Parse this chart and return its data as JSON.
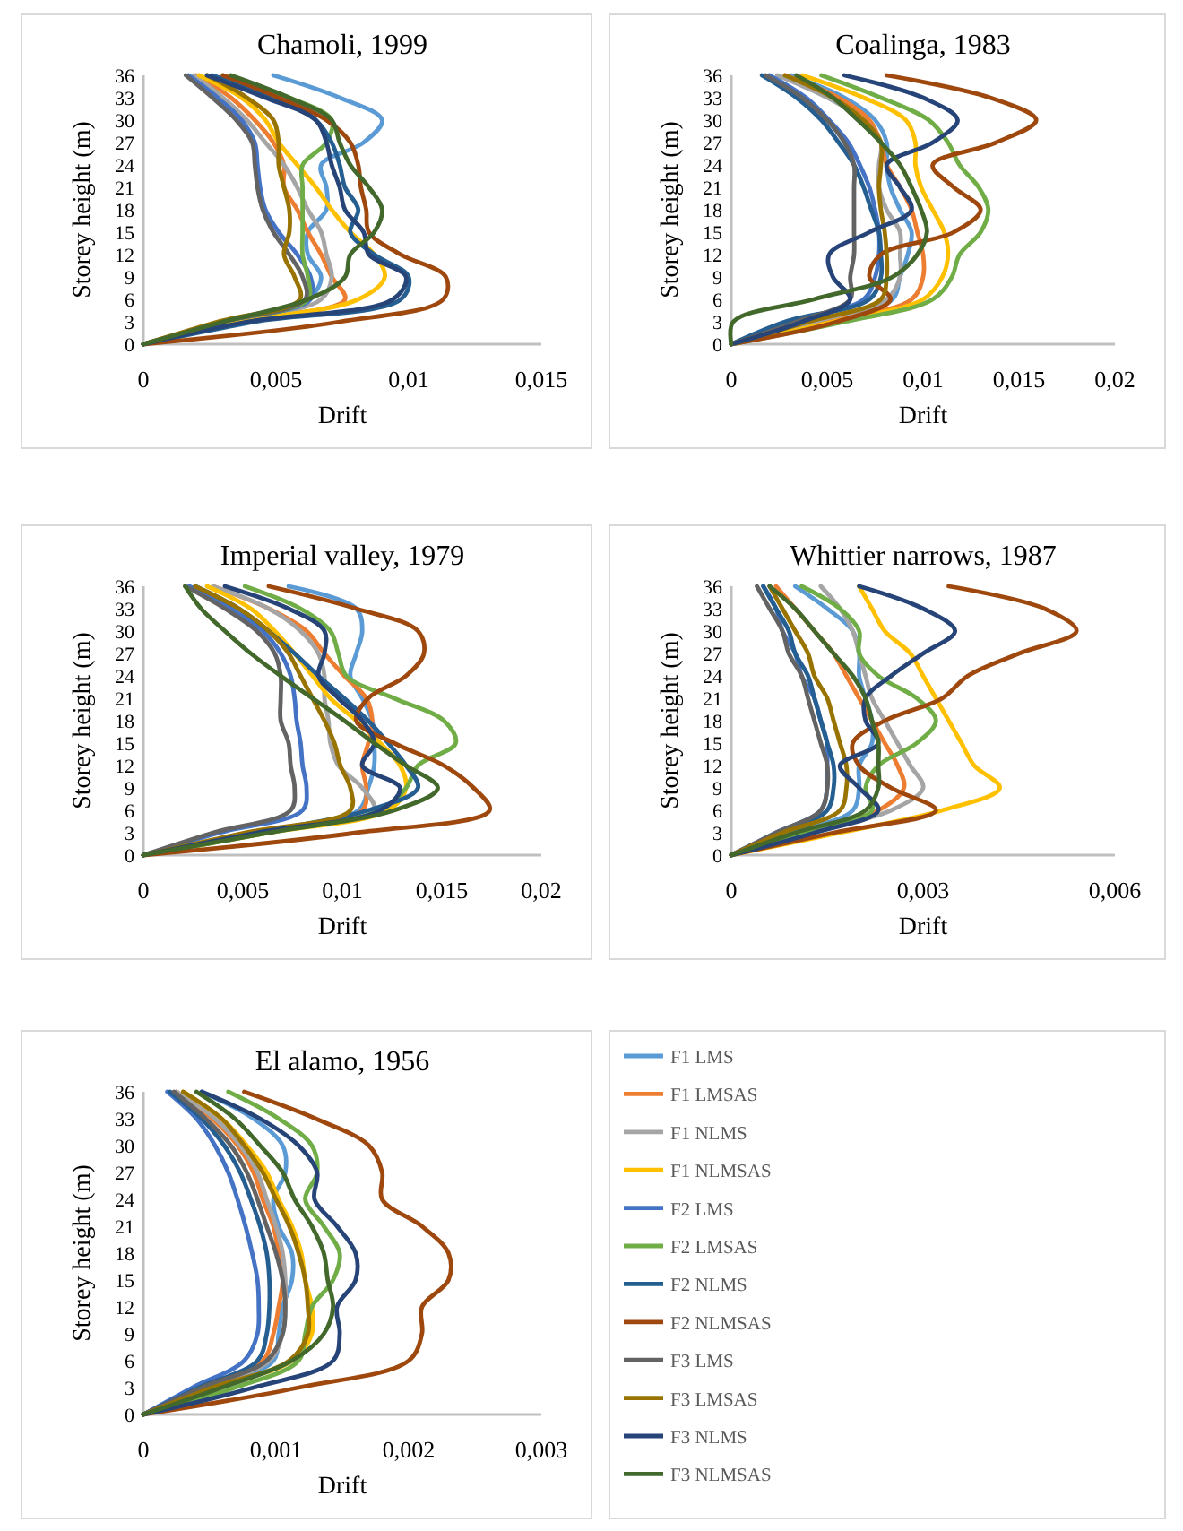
{
  "chart_data": [
    {
      "type": "line",
      "title": "Chamoli, 1999",
      "xlabel": "Drift",
      "ylabel": "Storey height (m)",
      "xlim": [
        0,
        0.015
      ],
      "xticks": [
        {
          "value": 0,
          "label": "0"
        },
        {
          "value": 0.005,
          "label": "0,005"
        },
        {
          "value": 0.01,
          "label": "0,01"
        },
        {
          "value": 0.015,
          "label": "0,015"
        }
      ],
      "ylim": [
        0,
        36
      ],
      "yticks": [
        0,
        3,
        6,
        9,
        12,
        15,
        18,
        21,
        24,
        27,
        30,
        33,
        36
      ],
      "grid": false,
      "legend": false,
      "series": [
        {
          "color": "#5b9bd5",
          "x": [
            0,
            0.003,
            0.0062,
            0.0067,
            0.0062,
            0.0062,
            0.0069,
            0.0069,
            0.0067,
            0.0083,
            0.009,
            0.0074,
            0.0049
          ],
          "values": [
            0,
            3,
            6,
            9,
            12,
            15,
            18,
            21,
            24,
            27,
            30,
            33,
            36
          ]
        },
        {
          "color": "#ed7d31",
          "x": [
            0,
            0.0035,
            0.0076,
            0.0071,
            0.0067,
            0.0062,
            0.0058,
            0.0053,
            0.0053,
            0.0049,
            0.0042,
            0.0033,
            0.002
          ],
          "values": [
            0,
            3,
            6,
            9,
            12,
            15,
            18,
            21,
            24,
            27,
            30,
            33,
            36
          ]
        },
        {
          "color": "#a5a5a5",
          "x": [
            0,
            0.0033,
            0.0067,
            0.0071,
            0.0069,
            0.0067,
            0.0062,
            0.0058,
            0.0053,
            0.0046,
            0.0039,
            0.003,
            0.0019
          ],
          "values": [
            0,
            3,
            6,
            9,
            12,
            15,
            18,
            21,
            24,
            27,
            30,
            33,
            36
          ]
        },
        {
          "color": "#ffc000",
          "x": [
            0,
            0.0037,
            0.0081,
            0.0091,
            0.0087,
            0.0078,
            0.0071,
            0.0065,
            0.0058,
            0.0051,
            0.0046,
            0.0037,
            0.0021
          ],
          "values": [
            0,
            3,
            6,
            9,
            12,
            15,
            18,
            21,
            24,
            27,
            30,
            33,
            36
          ]
        },
        {
          "color": "#4472c4",
          "x": [
            0,
            0.003,
            0.0063,
            0.0063,
            0.0058,
            0.0051,
            0.0046,
            0.0044,
            0.0043,
            0.0042,
            0.0037,
            0.0028,
            0.0017
          ],
          "values": [
            0,
            3,
            6,
            9,
            12,
            15,
            18,
            21,
            24,
            27,
            30,
            33,
            36
          ]
        },
        {
          "color": "#70ad47",
          "x": [
            0,
            0.003,
            0.0062,
            0.0062,
            0.006,
            0.006,
            0.006,
            0.006,
            0.006,
            0.0069,
            0.0071,
            0.0055,
            0.003
          ],
          "values": [
            0,
            3,
            6,
            9,
            12,
            15,
            18,
            21,
            24,
            27,
            30,
            33,
            36
          ]
        },
        {
          "color": "#255e91",
          "x": [
            0,
            0.0042,
            0.0097,
            0.01,
            0.0087,
            0.0078,
            0.0081,
            0.0076,
            0.0074,
            0.0071,
            0.0065,
            0.0049,
            0.0026
          ],
          "values": [
            0,
            3,
            6,
            9,
            12,
            15,
            18,
            21,
            24,
            27,
            30,
            33,
            36
          ]
        },
        {
          "color": "#9e480e",
          "x": [
            0,
            0.0074,
            0.0113,
            0.0114,
            0.0097,
            0.0085,
            0.0084,
            0.0082,
            0.0081,
            0.0078,
            0.0069,
            0.0051,
            0.003
          ],
          "values": [
            0,
            3,
            6,
            9,
            12,
            15,
            18,
            21,
            24,
            27,
            30,
            33,
            36
          ]
        },
        {
          "color": "#636363",
          "x": [
            0,
            0.003,
            0.0061,
            0.006,
            0.0055,
            0.0049,
            0.0045,
            0.0043,
            0.0042,
            0.0041,
            0.0035,
            0.0026,
            0.0016
          ],
          "values": [
            0,
            3,
            6,
            9,
            12,
            15,
            18,
            21,
            24,
            27,
            30,
            33,
            36
          ]
        },
        {
          "color": "#997300",
          "x": [
            0,
            0.0028,
            0.0059,
            0.0057,
            0.0053,
            0.0055,
            0.0055,
            0.0053,
            0.0051,
            0.0051,
            0.0049,
            0.0039,
            0.0024
          ],
          "values": [
            0,
            3,
            6,
            9,
            12,
            15,
            18,
            21,
            24,
            27,
            30,
            33,
            36
          ]
        },
        {
          "color": "#264478",
          "x": [
            0,
            0.0039,
            0.0094,
            0.0099,
            0.0085,
            0.0083,
            0.0076,
            0.0074,
            0.0071,
            0.0069,
            0.0065,
            0.0046,
            0.0024
          ],
          "values": [
            0,
            3,
            6,
            9,
            12,
            15,
            18,
            21,
            24,
            27,
            30,
            33,
            36
          ]
        },
        {
          "color": "#43682b",
          "x": [
            0,
            0.003,
            0.0062,
            0.0076,
            0.0078,
            0.0087,
            0.009,
            0.0085,
            0.0078,
            0.0074,
            0.0071,
            0.0055,
            0.0033
          ],
          "values": [
            0,
            3,
            6,
            9,
            12,
            15,
            18,
            21,
            24,
            27,
            30,
            33,
            36
          ]
        }
      ]
    },
    {
      "type": "line",
      "title": "Coalinga, 1983",
      "xlabel": "Drift",
      "ylabel": "Storey height (m)",
      "xlim": [
        0,
        0.02
      ],
      "xticks": [
        {
          "value": 0,
          "label": "0"
        },
        {
          "value": 0.005,
          "label": "0,005"
        },
        {
          "value": 0.01,
          "label": "0,01"
        },
        {
          "value": 0.015,
          "label": "0,015"
        },
        {
          "value": 0.02,
          "label": "0,02"
        }
      ],
      "ylim": [
        0,
        36
      ],
      "yticks": [
        0,
        3,
        6,
        9,
        12,
        15,
        18,
        21,
        24,
        27,
        30,
        33,
        36
      ],
      "grid": false,
      "legend": false,
      "series": [
        {
          "color": "#5b9bd5",
          "x": [
            0,
            0.0047,
            0.0084,
            0.0088,
            0.0092,
            0.0094,
            0.0088,
            0.0083,
            0.0081,
            0.0081,
            0.0075,
            0.0059,
            0.0031
          ],
          "values": [
            0,
            3,
            6,
            9,
            12,
            15,
            18,
            21,
            24,
            27,
            30,
            33,
            36
          ]
        },
        {
          "color": "#ed7d31",
          "x": [
            0,
            0.005,
            0.0094,
            0.01,
            0.01,
            0.0097,
            0.0094,
            0.0088,
            0.0081,
            0.0078,
            0.0072,
            0.0056,
            0.0028
          ],
          "values": [
            0,
            3,
            6,
            9,
            12,
            15,
            18,
            21,
            24,
            27,
            30,
            33,
            36
          ]
        },
        {
          "color": "#a5a5a5",
          "x": [
            0,
            0.0043,
            0.0081,
            0.0088,
            0.0088,
            0.0088,
            0.0081,
            0.0077,
            0.0077,
            0.0078,
            0.0069,
            0.005,
            0.0024
          ],
          "values": [
            0,
            3,
            6,
            9,
            12,
            15,
            18,
            21,
            24,
            27,
            30,
            33,
            36
          ]
        },
        {
          "color": "#ffc000",
          "x": [
            0,
            0.0053,
            0.01,
            0.011,
            0.0113,
            0.0111,
            0.0105,
            0.0099,
            0.0096,
            0.0096,
            0.0091,
            0.0069,
            0.0037
          ],
          "values": [
            0,
            3,
            6,
            9,
            12,
            15,
            18,
            21,
            24,
            27,
            30,
            33,
            36
          ]
        },
        {
          "color": "#4472c4",
          "x": [
            0,
            0.0031,
            0.0069,
            0.0075,
            0.0077,
            0.0077,
            0.0075,
            0.0072,
            0.0067,
            0.0061,
            0.0051,
            0.0039,
            0.002
          ],
          "values": [
            0,
            3,
            6,
            9,
            12,
            15,
            18,
            21,
            24,
            27,
            30,
            33,
            36
          ]
        },
        {
          "color": "#70ad47",
          "x": [
            0,
            0.0059,
            0.0105,
            0.0115,
            0.0119,
            0.013,
            0.0134,
            0.0129,
            0.0119,
            0.0113,
            0.0103,
            0.0078,
            0.0047
          ],
          "values": [
            0,
            3,
            6,
            9,
            12,
            15,
            18,
            21,
            24,
            27,
            30,
            33,
            36
          ]
        },
        {
          "color": "#255e91",
          "x": [
            0,
            0.0028,
            0.0072,
            0.0078,
            0.0078,
            0.0077,
            0.0073,
            0.0069,
            0.0064,
            0.0056,
            0.0047,
            0.0034,
            0.0016
          ],
          "values": [
            0,
            3,
            6,
            9,
            12,
            15,
            18,
            21,
            24,
            27,
            30,
            33,
            36
          ]
        },
        {
          "color": "#9e480e",
          "x": [
            0,
            0.0055,
            0.0083,
            0.0072,
            0.0078,
            0.0116,
            0.013,
            0.0116,
            0.0105,
            0.0138,
            0.0159,
            0.0135,
            0.0081
          ],
          "values": [
            0,
            3,
            6,
            9,
            12,
            15,
            18,
            21,
            24,
            27,
            30,
            33,
            36
          ]
        },
        {
          "color": "#636363",
          "x": [
            0,
            0.0034,
            0.0062,
            0.0062,
            0.0064,
            0.0064,
            0.0064,
            0.0064,
            0.0064,
            0.0059,
            0.005,
            0.0037,
            0.0018
          ],
          "values": [
            0,
            3,
            6,
            9,
            12,
            15,
            18,
            21,
            24,
            27,
            30,
            33,
            36
          ]
        },
        {
          "color": "#997300",
          "x": [
            0,
            0.004,
            0.0078,
            0.0081,
            0.0081,
            0.008,
            0.0078,
            0.0077,
            0.0078,
            0.0078,
            0.0069,
            0.0053,
            0.0028
          ],
          "values": [
            0,
            3,
            6,
            9,
            12,
            15,
            18,
            21,
            24,
            27,
            30,
            33,
            36
          ]
        },
        {
          "color": "#264478",
          "x": [
            0,
            0.0037,
            0.0062,
            0.0053,
            0.0051,
            0.0072,
            0.0094,
            0.0088,
            0.0081,
            0.0105,
            0.0118,
            0.01,
            0.0059
          ],
          "values": [
            0,
            3,
            6,
            9,
            12,
            15,
            18,
            21,
            24,
            27,
            30,
            33,
            36
          ]
        },
        {
          "color": "#43682b",
          "x": [
            0,
            0.0001,
            0.0043,
            0.0084,
            0.0097,
            0.0102,
            0.0099,
            0.0094,
            0.0088,
            0.0078,
            0.0066,
            0.0053,
            0.0034
          ],
          "values": [
            0,
            3,
            6,
            9,
            12,
            15,
            18,
            21,
            24,
            27,
            30,
            33,
            36
          ]
        }
      ]
    },
    {
      "type": "line",
      "title": "Imperial valley, 1979",
      "xlabel": "Drift",
      "ylabel": "Storey height (m)",
      "xlim": [
        0,
        0.02
      ],
      "xticks": [
        {
          "value": 0,
          "label": "0"
        },
        {
          "value": 0.005,
          "label": "0,005"
        },
        {
          "value": 0.01,
          "label": "0,01"
        },
        {
          "value": 0.015,
          "label": "0,015"
        },
        {
          "value": 0.02,
          "label": "0,02"
        }
      ],
      "ylim": [
        0,
        36
      ],
      "yticks": [
        0,
        3,
        6,
        9,
        12,
        15,
        18,
        21,
        24,
        27,
        30,
        33,
        36
      ],
      "grid": false,
      "legend": false,
      "series": [
        {
          "color": "#5b9bd5",
          "x": [
            0,
            0.0057,
            0.0108,
            0.0113,
            0.0116,
            0.0116,
            0.0115,
            0.011,
            0.0104,
            0.0107,
            0.011,
            0.0107,
            0.0073
          ],
          "values": [
            0,
            3,
            6,
            9,
            12,
            15,
            18,
            21,
            24,
            27,
            30,
            33,
            36
          ]
        },
        {
          "color": "#ed7d31",
          "x": [
            0,
            0.0057,
            0.011,
            0.0112,
            0.011,
            0.0113,
            0.0115,
            0.0112,
            0.0101,
            0.0091,
            0.0082,
            0.0063,
            0.0035
          ],
          "values": [
            0,
            3,
            6,
            9,
            12,
            15,
            18,
            21,
            24,
            27,
            30,
            33,
            36
          ]
        },
        {
          "color": "#a5a5a5",
          "x": [
            0,
            0.0057,
            0.0116,
            0.011,
            0.0098,
            0.0094,
            0.0093,
            0.0091,
            0.0091,
            0.0088,
            0.0079,
            0.0063,
            0.0035
          ],
          "values": [
            0,
            3,
            6,
            9,
            12,
            15,
            18,
            21,
            24,
            27,
            30,
            33,
            36
          ]
        },
        {
          "color": "#ffc000",
          "x": [
            0,
            0.0063,
            0.0123,
            0.0132,
            0.0129,
            0.0119,
            0.0107,
            0.0094,
            0.0085,
            0.0076,
            0.0066,
            0.0054,
            0.0032
          ],
          "values": [
            0,
            3,
            6,
            9,
            12,
            15,
            18,
            21,
            24,
            27,
            30,
            33,
            36
          ]
        },
        {
          "color": "#4472c4",
          "x": [
            0,
            0.0038,
            0.008,
            0.0082,
            0.008,
            0.0079,
            0.0077,
            0.0076,
            0.0074,
            0.0069,
            0.006,
            0.0044,
            0.0023
          ],
          "values": [
            0,
            3,
            6,
            9,
            12,
            15,
            18,
            21,
            24,
            27,
            30,
            33,
            36
          ]
        },
        {
          "color": "#70ad47",
          "x": [
            0,
            0.0063,
            0.0119,
            0.0132,
            0.0138,
            0.0157,
            0.0151,
            0.0126,
            0.0102,
            0.0098,
            0.0094,
            0.0079,
            0.0051
          ],
          "values": [
            0,
            3,
            6,
            9,
            12,
            15,
            18,
            21,
            24,
            27,
            30,
            33,
            36
          ]
        },
        {
          "color": "#255e91",
          "x": [
            0,
            0.0057,
            0.0113,
            0.0138,
            0.0132,
            0.0123,
            0.0113,
            0.0101,
            0.0088,
            0.0076,
            0.0063,
            0.0048,
            0.0026
          ],
          "values": [
            0,
            3,
            6,
            9,
            12,
            15,
            18,
            21,
            24,
            27,
            30,
            33,
            36
          ]
        },
        {
          "color": "#9e480e",
          "x": [
            0,
            0.0107,
            0.0174,
            0.0166,
            0.0151,
            0.0126,
            0.0107,
            0.0113,
            0.0132,
            0.0141,
            0.0138,
            0.0107,
            0.0063
          ],
          "values": [
            0,
            3,
            6,
            9,
            12,
            15,
            18,
            21,
            24,
            27,
            30,
            33,
            36
          ]
        },
        {
          "color": "#636363",
          "x": [
            0,
            0.0035,
            0.0074,
            0.0076,
            0.0074,
            0.0073,
            0.0069,
            0.0069,
            0.0069,
            0.0066,
            0.0057,
            0.0041,
            0.0021
          ],
          "values": [
            0,
            3,
            6,
            9,
            12,
            15,
            18,
            21,
            24,
            27,
            30,
            33,
            36
          ]
        },
        {
          "color": "#997300",
          "x": [
            0,
            0.0051,
            0.0104,
            0.0104,
            0.0099,
            0.0096,
            0.0091,
            0.0085,
            0.0079,
            0.0073,
            0.0063,
            0.0048,
            0.0026
          ],
          "values": [
            0,
            3,
            6,
            9,
            12,
            15,
            18,
            21,
            24,
            27,
            30,
            33,
            36
          ]
        },
        {
          "color": "#264478",
          "x": [
            0,
            0.0057,
            0.0119,
            0.0129,
            0.011,
            0.0116,
            0.011,
            0.0098,
            0.0088,
            0.0091,
            0.0091,
            0.0073,
            0.0041
          ],
          "values": [
            0,
            3,
            6,
            9,
            12,
            15,
            18,
            21,
            24,
            27,
            30,
            33,
            36
          ]
        },
        {
          "color": "#43682b",
          "x": [
            0,
            0.0063,
            0.0126,
            0.0148,
            0.0132,
            0.0116,
            0.0101,
            0.0085,
            0.0069,
            0.0054,
            0.0041,
            0.0029,
            0.0021
          ],
          "values": [
            0,
            3,
            6,
            9,
            12,
            15,
            18,
            21,
            24,
            27,
            30,
            33,
            36
          ]
        }
      ]
    },
    {
      "type": "line",
      "title": "Whittier narrows, 1987",
      "xlabel": "Drift",
      "ylabel": "Storey height (m)",
      "xlim": [
        0,
        0.006
      ],
      "xticks": [
        {
          "value": 0,
          "label": "0"
        },
        {
          "value": 0.003,
          "label": "0,003"
        },
        {
          "value": 0.006,
          "label": "0,006"
        }
      ],
      "ylim": [
        0,
        36
      ],
      "yticks": [
        0,
        3,
        6,
        9,
        12,
        15,
        18,
        21,
        24,
        27,
        30,
        33,
        36
      ],
      "grid": false,
      "legend": false,
      "series": [
        {
          "color": "#5b9bd5",
          "x": [
            0,
            0.001,
            0.0019,
            0.002,
            0.002,
            0.0022,
            0.0022,
            0.0021,
            0.002,
            0.002,
            0.0019,
            0.0015,
            0.001
          ],
          "values": [
            0,
            3,
            6,
            9,
            12,
            15,
            18,
            21,
            24,
            27,
            30,
            33,
            36
          ]
        },
        {
          "color": "#ed7d31",
          "x": [
            0,
            0.0011,
            0.0023,
            0.0027,
            0.0026,
            0.0024,
            0.0022,
            0.002,
            0.0018,
            0.0016,
            0.0013,
            0.001,
            0.0007
          ],
          "values": [
            0,
            3,
            6,
            9,
            12,
            15,
            18,
            21,
            24,
            27,
            30,
            33,
            36
          ]
        },
        {
          "color": "#a5a5a5",
          "x": [
            0,
            0.0012,
            0.0025,
            0.003,
            0.0028,
            0.0026,
            0.0024,
            0.0022,
            0.0021,
            0.002,
            0.0019,
            0.0017,
            0.0014
          ],
          "values": [
            0,
            3,
            6,
            9,
            12,
            15,
            18,
            21,
            24,
            27,
            30,
            33,
            36
          ]
        },
        {
          "color": "#ffc000",
          "x": [
            0,
            0.0017,
            0.0033,
            0.0042,
            0.0038,
            0.0036,
            0.0034,
            0.0032,
            0.003,
            0.0028,
            0.0024,
            0.0022,
            0.002
          ],
          "values": [
            0,
            3,
            6,
            9,
            12,
            15,
            18,
            21,
            24,
            27,
            30,
            33,
            36
          ]
        },
        {
          "color": "#4472c4",
          "x": [
            0,
            0.0007,
            0.0014,
            0.0015,
            0.0015,
            0.0015,
            0.0014,
            0.0013,
            0.0011,
            0.001,
            0.0008,
            0.0007,
            0.0005
          ],
          "values": [
            0,
            3,
            6,
            9,
            12,
            15,
            18,
            21,
            24,
            27,
            30,
            33,
            36
          ]
        },
        {
          "color": "#70ad47",
          "x": [
            0,
            0.0011,
            0.0022,
            0.0021,
            0.0023,
            0.0029,
            0.0032,
            0.0029,
            0.0023,
            0.002,
            0.002,
            0.0017,
            0.0011
          ],
          "values": [
            0,
            3,
            6,
            9,
            12,
            15,
            18,
            21,
            24,
            27,
            30,
            33,
            36
          ]
        },
        {
          "color": "#255e91",
          "x": [
            0,
            0.0008,
            0.0015,
            0.0016,
            0.0016,
            0.0015,
            0.0014,
            0.0013,
            0.0012,
            0.001,
            0.0009,
            0.0007,
            0.0005
          ],
          "values": [
            0,
            3,
            6,
            9,
            12,
            15,
            18,
            21,
            24,
            27,
            30,
            33,
            36
          ]
        },
        {
          "color": "#9e480e",
          "x": [
            0,
            0.0016,
            0.0032,
            0.0025,
            0.002,
            0.0019,
            0.0024,
            0.0033,
            0.0037,
            0.0045,
            0.0054,
            0.0049,
            0.0034
          ],
          "values": [
            0,
            3,
            6,
            9,
            12,
            15,
            18,
            21,
            24,
            27,
            30,
            33,
            36
          ]
        },
        {
          "color": "#636363",
          "x": [
            0,
            0.0007,
            0.0014,
            0.0015,
            0.0015,
            0.0014,
            0.0013,
            0.0012,
            0.0011,
            0.0009,
            0.0008,
            0.0006,
            0.0004
          ],
          "values": [
            0,
            3,
            6,
            9,
            12,
            15,
            18,
            21,
            24,
            27,
            30,
            33,
            36
          ]
        },
        {
          "color": "#997300",
          "x": [
            0,
            0.0008,
            0.0017,
            0.0018,
            0.0018,
            0.0017,
            0.0016,
            0.0015,
            0.0013,
            0.0012,
            0.001,
            0.0008,
            0.0006
          ],
          "values": [
            0,
            3,
            6,
            9,
            12,
            15,
            18,
            21,
            24,
            27,
            30,
            33,
            36
          ]
        },
        {
          "color": "#264478",
          "x": [
            0,
            0.0013,
            0.0023,
            0.002,
            0.0017,
            0.0023,
            0.0021,
            0.0021,
            0.0025,
            0.003,
            0.0035,
            0.003,
            0.002
          ],
          "values": [
            0,
            3,
            6,
            9,
            12,
            15,
            18,
            21,
            24,
            27,
            30,
            33,
            36
          ]
        },
        {
          "color": "#43682b",
          "x": [
            0,
            0.001,
            0.0021,
            0.0023,
            0.0023,
            0.0023,
            0.0022,
            0.0021,
            0.0019,
            0.0016,
            0.0013,
            0.001,
            0.0006
          ],
          "values": [
            0,
            3,
            6,
            9,
            12,
            15,
            18,
            21,
            24,
            27,
            30,
            33,
            36
          ]
        }
      ]
    },
    {
      "type": "line",
      "title": "El alamo, 1956",
      "xlabel": "Drift",
      "ylabel": "Storey height (m)",
      "xlim": [
        0,
        0.003
      ],
      "xticks": [
        {
          "value": 0,
          "label": "0"
        },
        {
          "value": 0.001,
          "label": "0,001"
        },
        {
          "value": 0.002,
          "label": "0,002"
        },
        {
          "value": 0.003,
          "label": "0,003"
        }
      ],
      "ylim": [
        0,
        36
      ],
      "yticks": [
        0,
        3,
        6,
        9,
        12,
        15,
        18,
        21,
        24,
        27,
        30,
        33,
        36
      ],
      "grid": false,
      "legend": "right",
      "series": [
        {
          "name": "F1 LMS",
          "color": "#5b9bd5",
          "x": [
            0,
            0.00054,
            0.00098,
            0.00102,
            0.00105,
            0.00112,
            0.00112,
            0.00102,
            0.00098,
            0.00107,
            0.00105,
            0.00083,
            0.00044
          ],
          "values": [
            0,
            3,
            6,
            9,
            12,
            15,
            18,
            21,
            24,
            27,
            30,
            33,
            36
          ]
        },
        {
          "name": "F1 LMSAS",
          "color": "#ed7d31",
          "x": [
            0,
            0.00044,
            0.0009,
            0.00098,
            0.00102,
            0.00105,
            0.00102,
            0.00098,
            0.0009,
            0.00083,
            0.00071,
            0.00052,
            0.00025
          ],
          "values": [
            0,
            3,
            6,
            9,
            12,
            15,
            18,
            21,
            24,
            27,
            30,
            33,
            36
          ]
        },
        {
          "name": "F1 NLMS",
          "color": "#a5a5a5",
          "x": [
            0,
            0.00047,
            0.00095,
            0.00105,
            0.00107,
            0.00107,
            0.00105,
            0.001,
            0.00093,
            0.00086,
            0.00073,
            0.00054,
            0.00025
          ],
          "values": [
            0,
            3,
            6,
            9,
            12,
            15,
            18,
            21,
            24,
            27,
            30,
            33,
            36
          ]
        },
        {
          "name": "F1 NLMSAS",
          "color": "#ffc000",
          "x": [
            0,
            0.00054,
            0.00112,
            0.00127,
            0.00127,
            0.00122,
            0.00119,
            0.00112,
            0.00102,
            0.00093,
            0.00078,
            0.00059,
            0.0003
          ],
          "values": [
            0,
            3,
            6,
            9,
            12,
            15,
            18,
            21,
            24,
            27,
            30,
            33,
            36
          ]
        },
        {
          "name": "F2 LMS",
          "color": "#4472c4",
          "x": [
            0,
            0.00037,
            0.00076,
            0.00086,
            0.00087,
            0.00086,
            0.00082,
            0.00077,
            0.00071,
            0.00064,
            0.00054,
            0.0004,
            0.00018
          ],
          "values": [
            0,
            3,
            6,
            9,
            12,
            15,
            18,
            21,
            24,
            27,
            30,
            33,
            36
          ]
        },
        {
          "name": "F2 LMSAS",
          "color": "#70ad47",
          "x": [
            0,
            0.00069,
            0.00117,
            0.00122,
            0.00127,
            0.00143,
            0.00148,
            0.00136,
            0.00122,
            0.00131,
            0.00127,
            0.00102,
            0.00064
          ],
          "values": [
            0,
            3,
            6,
            9,
            12,
            15,
            18,
            21,
            24,
            27,
            30,
            33,
            36
          ]
        },
        {
          "name": "F2 NLMS",
          "color": "#255e91",
          "x": [
            0,
            0.00042,
            0.00086,
            0.00093,
            0.00095,
            0.00095,
            0.00093,
            0.00088,
            0.00081,
            0.00073,
            0.00061,
            0.00044,
            0.0002
          ],
          "values": [
            0,
            3,
            6,
            9,
            12,
            15,
            18,
            21,
            24,
            27,
            30,
            33,
            36
          ]
        },
        {
          "name": "F2 NLMSAS",
          "color": "#9e480e",
          "x": [
            0,
            0.00117,
            0.002,
            0.0021,
            0.0021,
            0.0023,
            0.0023,
            0.0021,
            0.0018,
            0.0018,
            0.0017,
            0.0013,
            0.00076
          ],
          "values": [
            0,
            3,
            6,
            9,
            12,
            15,
            18,
            21,
            24,
            27,
            30,
            33,
            36
          ]
        },
        {
          "name": "F3 LMS",
          "color": "#636363",
          "x": [
            0,
            0.00044,
            0.00093,
            0.00105,
            0.00107,
            0.00105,
            0.001,
            0.00093,
            0.00086,
            0.00078,
            0.00066,
            0.00047,
            0.00023
          ],
          "values": [
            0,
            3,
            6,
            9,
            12,
            15,
            18,
            21,
            24,
            27,
            30,
            33,
            36
          ]
        },
        {
          "name": "F3 LMSAS",
          "color": "#997300",
          "x": [
            0,
            0.00052,
            0.0011,
            0.00124,
            0.00124,
            0.00122,
            0.00117,
            0.0011,
            0.001,
            0.0009,
            0.00076,
            0.00059,
            0.0003
          ],
          "values": [
            0,
            3,
            6,
            9,
            12,
            15,
            18,
            21,
            24,
            27,
            30,
            33,
            36
          ]
        },
        {
          "name": "F3 NLMS",
          "color": "#264478",
          "x": [
            0,
            0.00083,
            0.00143,
            0.00148,
            0.00146,
            0.0016,
            0.0016,
            0.00146,
            0.00129,
            0.00131,
            0.00117,
            0.00088,
            0.00044
          ],
          "values": [
            0,
            3,
            6,
            9,
            12,
            15,
            18,
            21,
            24,
            27,
            30,
            33,
            36
          ]
        },
        {
          "name": "F3 NLMSAS",
          "color": "#43682b",
          "x": [
            0,
            0.00059,
            0.00112,
            0.00136,
            0.00143,
            0.00139,
            0.00136,
            0.00127,
            0.00114,
            0.00105,
            0.00088,
            0.00069,
            0.0004
          ],
          "values": [
            0,
            3,
            6,
            9,
            12,
            15,
            18,
            21,
            24,
            27,
            30,
            33,
            36
          ]
        }
      ]
    }
  ]
}
